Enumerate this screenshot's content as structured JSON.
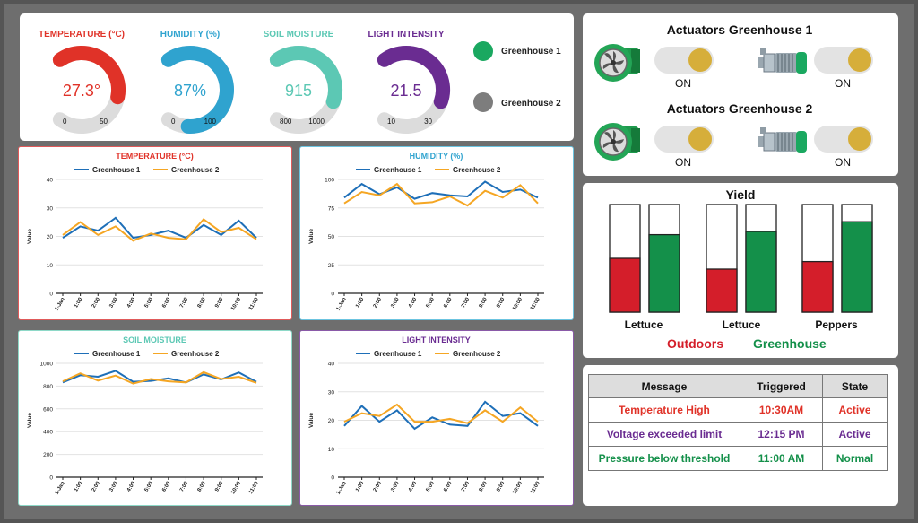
{
  "gauges": [
    {
      "title": "TEMPERATURE (°C)",
      "value_text": "27.3°",
      "min": "0",
      "max": "50",
      "fraction": 0.546,
      "color": "#e03228"
    },
    {
      "title": "HUMIDITY (%)",
      "value_text": "87%",
      "min": "0",
      "max": "100",
      "fraction": 0.87,
      "color": "#2fa3cf"
    },
    {
      "title": "SOIL MOISTURE",
      "value_text": "915",
      "min": "800",
      "max": "1000",
      "fraction": 0.575,
      "color": "#5cc8b4"
    },
    {
      "title": "LIGHT INTENSITY",
      "value_text": "21.5",
      "min": "10",
      "max": "30",
      "fraction": 0.575,
      "color": "#6a2c91"
    }
  ],
  "greenhouse_legend": [
    {
      "label": "Greenhouse 1",
      "color": "#1aa860"
    },
    {
      "label": "Greenhouse 2",
      "color": "#7d7d7d"
    }
  ],
  "actuators": [
    {
      "title": "Actuators Greenhouse 1",
      "fan_state": "ON",
      "pump_state": "ON"
    },
    {
      "title": "Actuators Greenhouse 2",
      "fan_state": "ON",
      "pump_state": "ON"
    }
  ],
  "yield": {
    "title": "Yield",
    "groups": [
      {
        "label": "Lettuce",
        "outdoors": 0.5,
        "greenhouse": 0.72
      },
      {
        "label": "Lettuce",
        "outdoors": 0.4,
        "greenhouse": 0.75
      },
      {
        "label": "Peppers",
        "outdoors": 0.47,
        "greenhouse": 0.84
      }
    ],
    "legend_outdoors": "Outdoors",
    "legend_greenhouse": "Greenhouse",
    "outdoors_color": "#d41e2a",
    "greenhouse_color": "#14904a"
  },
  "alerts": {
    "headers": [
      "Message",
      "Triggered",
      "State"
    ],
    "rows": [
      {
        "message": "Temperature High",
        "triggered": "10:30AM",
        "state": "Active",
        "color": "#e03228"
      },
      {
        "message": "Voltage exceeded limit",
        "triggered": "12:15 PM",
        "state": "Active",
        "color": "#6a2c91"
      },
      {
        "message": "Pressure below threshold",
        "triggered": "11:00 AM",
        "state": "Normal",
        "color": "#14904a"
      }
    ]
  },
  "chart_data": [
    {
      "type": "line",
      "title": "TEMPERATURE (°C)",
      "title_color": "#e03228",
      "border_color": "#e05a5a",
      "ylabel": "Value",
      "ylim": [
        0,
        40
      ],
      "yticks": [
        0,
        10,
        20,
        30,
        40
      ],
      "x": [
        "1-Jan",
        "1:00",
        "2:00",
        "3:00",
        "4:00",
        "5:00",
        "6:00",
        "7:00",
        "8:00",
        "9:00",
        "10:00",
        "11:00"
      ],
      "series": [
        {
          "name": "Greenhouse 1",
          "color": "#1e6fb8",
          "values": [
            19.5,
            23.5,
            22,
            26.5,
            19.5,
            20.5,
            22,
            19.5,
            24,
            20.5,
            25.5,
            19.5
          ]
        },
        {
          "name": "Greenhouse 2",
          "color": "#f5a623",
          "values": [
            20.5,
            25,
            20.5,
            23.5,
            18.5,
            21,
            19.5,
            19,
            26,
            21.5,
            23,
            19
          ]
        }
      ]
    },
    {
      "type": "line",
      "title": "HUMIDITY (%)",
      "title_color": "#2fa3cf",
      "border_color": "#6cc4e0",
      "ylabel": "Value",
      "ylim": [
        0,
        100
      ],
      "yticks": [
        0,
        25,
        50,
        75,
        100
      ],
      "x": [
        "1-Jan",
        "1:00",
        "2:00",
        "3:00",
        "4:00",
        "5:00",
        "6:00",
        "7:00",
        "8:00",
        "9:00",
        "10:00",
        "11:00"
      ],
      "series": [
        {
          "name": "Greenhouse 1",
          "color": "#1e6fb8",
          "values": [
            84,
            96,
            87,
            93,
            83,
            88,
            86,
            85,
            98,
            89,
            91,
            84
          ]
        },
        {
          "name": "Greenhouse 2",
          "color": "#f5a623",
          "values": [
            79,
            89,
            86,
            96,
            79,
            80,
            85,
            77,
            90,
            84,
            95,
            79
          ]
        }
      ]
    },
    {
      "type": "line",
      "title": "SOIL MOISTURE",
      "title_color": "#5cc8b4",
      "border_color": "#8ed9c8",
      "ylabel": "Value",
      "ylim": [
        0,
        1000
      ],
      "yticks": [
        0,
        200,
        400,
        600,
        800,
        1000
      ],
      "x": [
        "1-Jan",
        "1:00",
        "2:00",
        "3:00",
        "4:00",
        "5:00",
        "6:00",
        "7:00",
        "8:00",
        "9:00",
        "10:00",
        "11:00"
      ],
      "series": [
        {
          "name": "Greenhouse 1",
          "color": "#1e6fb8",
          "values": [
            832,
            895,
            882,
            934,
            838,
            846,
            868,
            832,
            902,
            858,
            920,
            838
          ]
        },
        {
          "name": "Greenhouse 2",
          "color": "#f5a623",
          "values": [
            842,
            912,
            848,
            892,
            822,
            862,
            842,
            832,
            922,
            862,
            882,
            828
          ]
        }
      ]
    },
    {
      "type": "line",
      "title": "LIGHT INTENSITY",
      "title_color": "#6a2c91",
      "border_color": "#8a5aa8",
      "ylabel": "Value",
      "ylim": [
        0,
        40
      ],
      "yticks": [
        0,
        10,
        20,
        30,
        40
      ],
      "x": [
        "1-Jan",
        "1:00",
        "2:00",
        "3:00",
        "4:00",
        "5:00",
        "6:00",
        "7:00",
        "8:00",
        "9:00",
        "10:00",
        "11:00"
      ],
      "series": [
        {
          "name": "Greenhouse 1",
          "color": "#1e6fb8",
          "values": [
            18,
            25,
            19.5,
            23.5,
            17,
            21,
            18.5,
            18,
            26.5,
            21.5,
            22.5,
            18
          ]
        },
        {
          "name": "Greenhouse 2",
          "color": "#f5a623",
          "values": [
            19.5,
            22.5,
            21.5,
            25.5,
            19.5,
            19.5,
            20.5,
            19,
            23.5,
            19.5,
            24.5,
            19.5
          ]
        }
      ]
    }
  ]
}
